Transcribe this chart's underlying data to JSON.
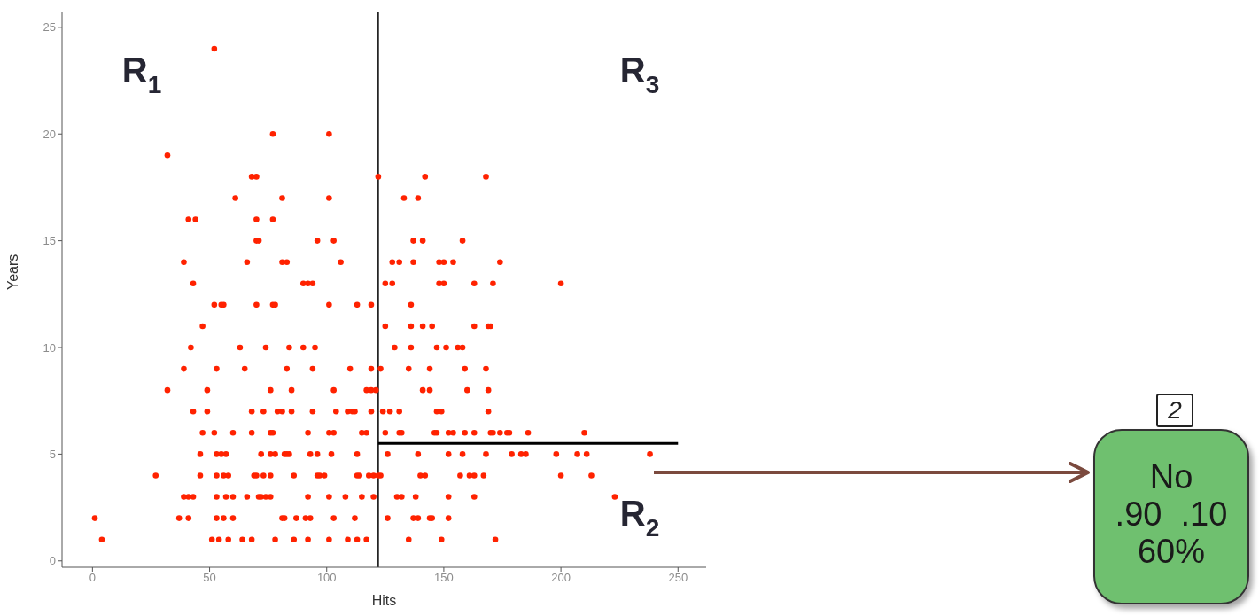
{
  "chart_data": [
    {
      "type": "scatter",
      "xlabel": "Hits",
      "ylabel": "Years",
      "xlim": [
        -13,
        262
      ],
      "xticks": [
        0,
        50,
        100,
        150,
        200,
        250
      ],
      "ylim": [
        -0.3,
        25.7
      ],
      "yticks": [
        0,
        5,
        10,
        15,
        20,
        25
      ],
      "series": [
        {
          "color": "#ff2200",
          "marker": "circle",
          "x": [
            52,
            77,
            101,
            32,
            68,
            70,
            122,
            142,
            168,
            61,
            81,
            101,
            133,
            139,
            41,
            44,
            70,
            77,
            70,
            71,
            96,
            103,
            137,
            141,
            158,
            39,
            66,
            81,
            83,
            106,
            128,
            131,
            137,
            148,
            150,
            154,
            174,
            43,
            90,
            92,
            94,
            125,
            128,
            148,
            150,
            163,
            171,
            200,
            52,
            55,
            56,
            70,
            77,
            78,
            101,
            113,
            119,
            136,
            47,
            125,
            136,
            141,
            145,
            163,
            169,
            170,
            42,
            63,
            74,
            84,
            90,
            95,
            129,
            136,
            147,
            151,
            156,
            158,
            39,
            53,
            65,
            83,
            94,
            110,
            119,
            123,
            135,
            144,
            159,
            168,
            32,
            49,
            76,
            85,
            103,
            117,
            119,
            121,
            141,
            144,
            160,
            169,
            43,
            49,
            68,
            73,
            79,
            81,
            85,
            94,
            104,
            109,
            111,
            112,
            119,
            124,
            127,
            131,
            147,
            149,
            169,
            47,
            52,
            60,
            68,
            76,
            77,
            92,
            101,
            103,
            115,
            117,
            125,
            131,
            132,
            146,
            147,
            152,
            154,
            159,
            163,
            170,
            171,
            174,
            177,
            178,
            186,
            210,
            46,
            53,
            55,
            57,
            72,
            76,
            78,
            82,
            83,
            84,
            93,
            96,
            102,
            113,
            126,
            139,
            152,
            158,
            168,
            179,
            183,
            185,
            198,
            207,
            211,
            238,
            27,
            46,
            53,
            56,
            58,
            69,
            70,
            73,
            76,
            86,
            96,
            97,
            99,
            113,
            114,
            118,
            120,
            122,
            123,
            140,
            142,
            157,
            161,
            163,
            167,
            200,
            213,
            39,
            41,
            43,
            53,
            57,
            60,
            66,
            71,
            72,
            74,
            76,
            92,
            101,
            108,
            115,
            120,
            130,
            132,
            138,
            152,
            163,
            223,
            1,
            37,
            41,
            53,
            56,
            60,
            81,
            82,
            87,
            91,
            93,
            103,
            112,
            126,
            137,
            139,
            144,
            145,
            152,
            4,
            51,
            54,
            58,
            64,
            68,
            78,
            86,
            92,
            101,
            109,
            113,
            117,
            135,
            149,
            172
          ],
          "values": [
            24,
            20,
            20,
            19,
            18,
            18,
            18,
            18,
            18,
            17,
            17,
            17,
            17,
            17,
            16,
            16,
            16,
            16,
            15,
            15,
            15,
            15,
            15,
            15,
            15,
            14,
            14,
            14,
            14,
            14,
            14,
            14,
            14,
            14,
            14,
            14,
            14,
            13,
            13,
            13,
            13,
            13,
            13,
            13,
            13,
            13,
            13,
            13,
            12,
            12,
            12,
            12,
            12,
            12,
            12,
            12,
            12,
            12,
            11,
            11,
            11,
            11,
            11,
            11,
            11,
            11,
            10,
            10,
            10,
            10,
            10,
            10,
            10,
            10,
            10,
            10,
            10,
            10,
            9,
            9,
            9,
            9,
            9,
            9,
            9,
            9,
            9,
            9,
            9,
            9,
            8,
            8,
            8,
            8,
            8,
            8,
            8,
            8,
            8,
            8,
            8,
            8,
            7,
            7,
            7,
            7,
            7,
            7,
            7,
            7,
            7,
            7,
            7,
            7,
            7,
            7,
            7,
            7,
            7,
            7,
            7,
            6,
            6,
            6,
            6,
            6,
            6,
            6,
            6,
            6,
            6,
            6,
            6,
            6,
            6,
            6,
            6,
            6,
            6,
            6,
            6,
            6,
            6,
            6,
            6,
            6,
            6,
            6,
            5,
            5,
            5,
            5,
            5,
            5,
            5,
            5,
            5,
            5,
            5,
            5,
            5,
            5,
            5,
            5,
            5,
            5,
            5,
            5,
            5,
            5,
            5,
            5,
            5,
            5,
            4,
            4,
            4,
            4,
            4,
            4,
            4,
            4,
            4,
            4,
            4,
            4,
            4,
            4,
            4,
            4,
            4,
            4,
            4,
            4,
            4,
            4,
            4,
            4,
            4,
            4,
            4,
            3,
            3,
            3,
            3,
            3,
            3,
            3,
            3,
            3,
            3,
            3,
            3,
            3,
            3,
            3,
            3,
            3,
            3,
            3,
            3,
            3,
            3,
            2,
            2,
            2,
            2,
            2,
            2,
            2,
            2,
            2,
            2,
            2,
            2,
            2,
            2,
            2,
            2,
            2,
            2,
            2,
            1,
            1,
            1,
            1,
            1,
            1,
            1,
            1,
            1,
            1,
            1,
            1,
            1,
            1,
            1,
            1
          ]
        },
        {
          "type": "line",
          "color": "#000000",
          "x": [
            122,
            250
          ],
          "values": [
            5.5,
            5.5
          ]
        }
      ],
      "ref_lines": [
        {
          "axis": "x",
          "value": 122,
          "color": "#000000"
        }
      ],
      "annotations": [
        "R$_{1}$",
        "R$_{3}$",
        "R$_{2}$"
      ]
    },
    {
      "type": "other",
      "annotations": [
        "2",
        "No",
        ".90  .10",
        "60%"
      ]
    }
  ]
}
